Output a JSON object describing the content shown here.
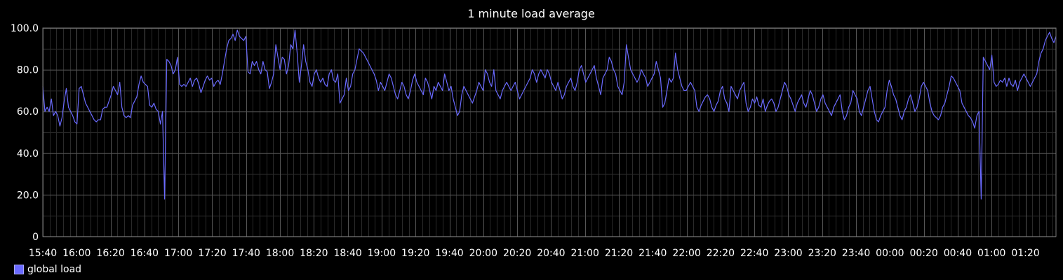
{
  "chart_data": {
    "type": "line",
    "title": "1 minute load average",
    "xlabel": "",
    "ylabel": "",
    "ylim": [
      0,
      100
    ],
    "y_ticks": [
      "0",
      "20.0",
      "40.0",
      "60.0",
      "80.0",
      "100.0"
    ],
    "x_ticks": [
      "15:40",
      "16:00",
      "16:20",
      "16:40",
      "17:00",
      "17:20",
      "17:40",
      "18:00",
      "18:20",
      "18:40",
      "19:00",
      "19:20",
      "19:40",
      "20:00",
      "20:20",
      "20:40",
      "21:00",
      "21:20",
      "21:40",
      "22:00",
      "22:20",
      "22:40",
      "23:00",
      "23:20",
      "23:40",
      "00:00",
      "00:20",
      "00:40",
      "01:00",
      "01:20"
    ],
    "x_start": "15:40",
    "x_end": "01:38",
    "grid": true,
    "legend_position": "bottom-left",
    "series": [
      {
        "name": "global load",
        "color": "#6a6aff",
        "values": [
          72,
          60,
          62,
          60,
          66,
          58,
          60,
          58,
          53,
          57,
          65,
          71,
          62,
          60,
          58,
          55,
          54,
          71,
          72,
          68,
          64,
          62,
          60,
          58,
          56,
          55,
          56,
          56,
          61,
          62,
          62,
          65,
          68,
          72,
          70,
          68,
          74,
          62,
          58,
          57,
          58,
          57,
          63,
          65,
          67,
          73,
          77,
          74,
          73,
          72,
          63,
          62,
          64,
          61,
          60,
          54,
          60,
          18,
          85,
          84,
          82,
          78,
          80,
          86,
          73,
          72,
          73,
          72,
          74,
          76,
          72,
          75,
          76,
          73,
          69,
          72,
          75,
          77,
          75,
          76,
          72,
          74,
          75,
          73,
          78,
          84,
          90,
          94,
          95,
          97,
          94,
          99,
          96,
          95,
          94,
          96,
          79,
          78,
          84,
          82,
          84,
          80,
          78,
          84,
          80,
          79,
          71,
          74,
          78,
          92,
          86,
          80,
          86,
          85,
          78,
          82,
          92,
          90,
          99,
          88,
          74,
          82,
          92,
          84,
          80,
          74,
          72,
          78,
          80,
          76,
          74,
          76,
          73,
          72,
          78,
          80,
          75,
          74,
          78,
          64,
          66,
          68,
          76,
          70,
          72,
          78,
          80,
          85,
          90,
          89,
          88,
          86,
          84,
          82,
          80,
          78,
          75,
          70,
          74,
          72,
          70,
          74,
          78,
          76,
          72,
          68,
          66,
          70,
          74,
          72,
          68,
          66,
          70,
          75,
          78,
          74,
          72,
          70,
          68,
          76,
          74,
          70,
          66,
          72,
          70,
          74,
          72,
          70,
          78,
          74,
          70,
          72,
          66,
          62,
          58,
          60,
          68,
          72,
          70,
          68,
          66,
          64,
          67,
          70,
          74,
          72,
          70,
          80,
          78,
          74,
          72,
          80,
          70,
          68,
          66,
          70,
          72,
          74,
          72,
          70,
          72,
          74,
          70,
          66,
          68,
          70,
          72,
          74,
          76,
          80,
          78,
          74,
          78,
          80,
          78,
          76,
          80,
          78,
          74,
          72,
          70,
          74,
          70,
          66,
          68,
          72,
          74,
          76,
          72,
          70,
          74,
          80,
          82,
          78,
          74,
          76,
          78,
          80,
          82,
          76,
          72,
          68,
          76,
          78,
          80,
          86,
          84,
          80,
          78,
          72,
          70,
          68,
          74,
          92,
          86,
          80,
          78,
          76,
          74,
          76,
          80,
          78,
          76,
          72,
          74,
          76,
          78,
          84,
          80,
          76,
          62,
          64,
          70,
          76,
          74,
          76,
          88,
          80,
          76,
          72,
          70,
          70,
          72,
          74,
          72,
          70,
          62,
          60,
          63,
          65,
          67,
          68,
          66,
          62,
          60,
          63,
          65,
          70,
          72,
          66,
          64,
          60,
          72,
          70,
          68,
          66,
          70,
          72,
          74,
          64,
          60,
          62,
          66,
          64,
          67,
          63,
          62,
          66,
          60,
          63,
          65,
          66,
          64,
          60,
          62,
          66,
          70,
          74,
          72,
          68,
          66,
          63,
          60,
          64,
          66,
          68,
          64,
          62,
          66,
          70,
          68,
          64,
          60,
          62,
          66,
          68,
          64,
          62,
          60,
          58,
          62,
          64,
          66,
          68,
          60,
          56,
          58,
          62,
          64,
          70,
          68,
          66,
          60,
          58,
          62,
          66,
          70,
          72,
          66,
          60,
          56,
          55,
          58,
          60,
          62,
          70,
          75,
          72,
          68,
          66,
          62,
          58,
          56,
          60,
          62,
          66,
          68,
          64,
          60,
          62,
          66,
          72,
          74,
          72,
          70,
          64,
          60,
          58,
          57,
          56,
          58,
          62,
          64,
          68,
          72,
          77,
          76,
          74,
          72,
          70,
          64,
          62,
          60,
          58,
          57,
          55,
          52,
          58,
          60,
          18,
          86,
          84,
          82,
          80,
          87,
          74,
          72,
          73,
          75,
          74,
          76,
          72,
          76,
          73,
          72,
          75,
          70,
          74,
          76,
          78,
          76,
          74,
          72,
          74,
          76,
          78,
          84,
          88,
          90,
          94,
          96,
          98,
          95,
          93,
          96
        ]
      }
    ]
  }
}
